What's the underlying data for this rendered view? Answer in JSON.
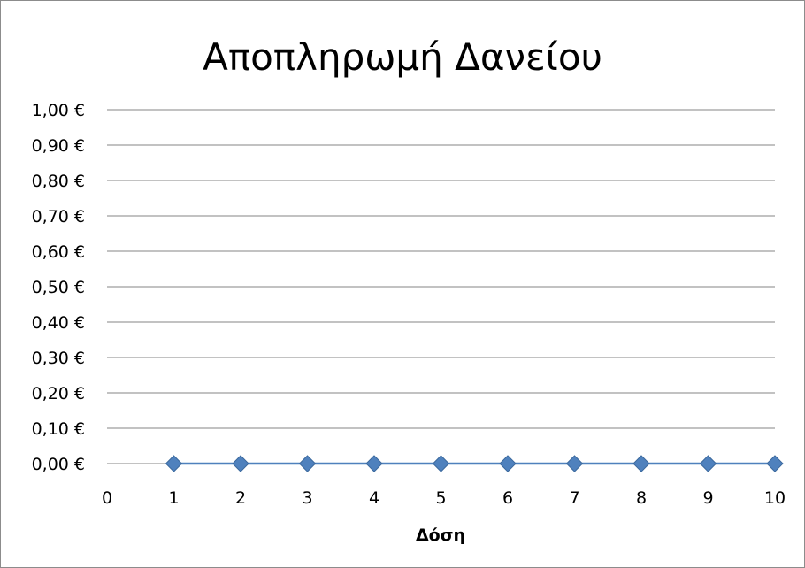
{
  "chart_data": {
    "type": "line",
    "title": "Αποπληρωμή Δανείου",
    "xlabel": "Δόση",
    "ylabel": "",
    "x": [
      1,
      2,
      3,
      4,
      5,
      6,
      7,
      8,
      9,
      10
    ],
    "series": [
      {
        "values": [
          0,
          0,
          0,
          0,
          0,
          0,
          0,
          0,
          0,
          0
        ]
      }
    ],
    "xlim": [
      0,
      10
    ],
    "ylim": [
      0,
      1
    ],
    "x_ticks": [
      "0",
      "1",
      "2",
      "3",
      "4",
      "5",
      "6",
      "7",
      "8",
      "9",
      "10"
    ],
    "y_ticks": [
      "0,00 €",
      "0,10 €",
      "0,20 €",
      "0,30 €",
      "0,40 €",
      "0,50 €",
      "0,60 €",
      "0,70 €",
      "0,80 €",
      "0,90 €",
      "1,00 €"
    ],
    "grid": true,
    "legend": "none",
    "colors": {
      "series": "#4F81BD",
      "grid": "#868686",
      "frame": "#8c8c8c"
    }
  }
}
